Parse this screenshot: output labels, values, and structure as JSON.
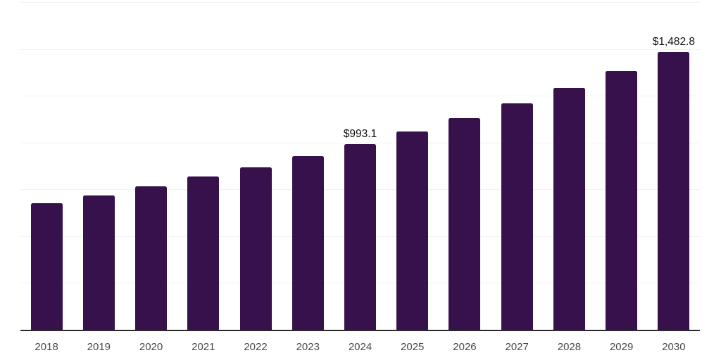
{
  "chart_data": {
    "type": "bar",
    "title": "",
    "xlabel": "",
    "ylabel": "",
    "categories": [
      "2018",
      "2019",
      "2020",
      "2021",
      "2022",
      "2023",
      "2024",
      "2025",
      "2026",
      "2027",
      "2028",
      "2029",
      "2030"
    ],
    "values": [
      675,
      718,
      768,
      817,
      869,
      929,
      993.1,
      1058,
      1129,
      1211,
      1293,
      1383,
      1482.8
    ],
    "data_labels": [
      {
        "category": "2024",
        "text": "$993.1"
      },
      {
        "category": "2030",
        "text": "$1,482.8"
      }
    ],
    "ylim": [
      0,
      1750
    ],
    "grid_interval": 250,
    "grid": true,
    "legend": false,
    "y_axis_labels_visible": false,
    "colors": {
      "bar": "#36114B",
      "axis_line": "#2b2b2b",
      "gridline": "#f2f2f2",
      "tick_label": "#4a4a4a",
      "data_label": "#111111",
      "background": "#ffffff"
    }
  }
}
